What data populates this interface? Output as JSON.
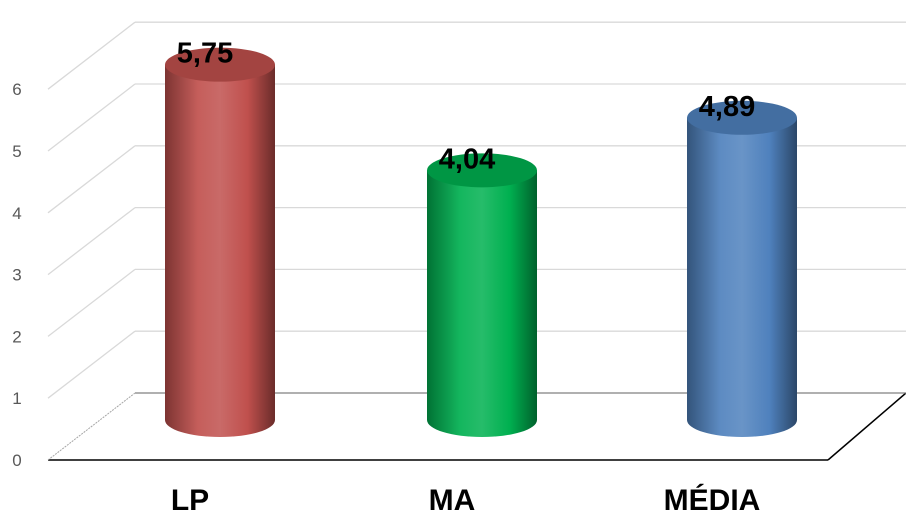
{
  "chart_data": {
    "type": "bar",
    "style": "3d-cylinder",
    "categories": [
      "LP",
      "MA",
      "MÉDIA"
    ],
    "values": [
      5.75,
      4.04,
      4.89
    ],
    "data_labels": [
      "5,75",
      "4,04",
      "4,89"
    ],
    "colors": [
      "#c0504d",
      "#00b050",
      "#4f81bd"
    ],
    "ylim": [
      0,
      6
    ],
    "yticks": [
      "0",
      "1",
      "2",
      "3",
      "4",
      "5",
      "6"
    ],
    "grid": true,
    "legend": "none",
    "title": "",
    "xlabel": "",
    "ylabel": ""
  }
}
